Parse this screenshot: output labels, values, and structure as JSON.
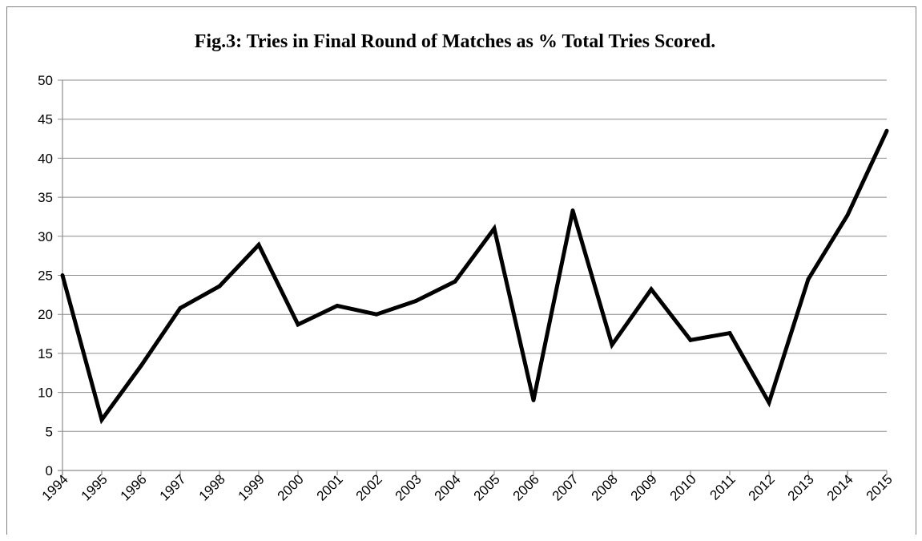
{
  "chart_data": {
    "type": "line",
    "title": "Fig.3: Tries in Final Round of Matches as % Total Tries Scored.",
    "xlabel": "",
    "ylabel": "",
    "x": [
      "1994",
      "1995",
      "1996",
      "1997",
      "1998",
      "1999",
      "2000",
      "2001",
      "2002",
      "2003",
      "2004",
      "2005",
      "2006",
      "2007",
      "2008",
      "2009",
      "2010",
      "2011",
      "2012",
      "2013",
      "2014",
      "2015"
    ],
    "series": [
      {
        "values": [
          25,
          6.5,
          13.4,
          20.8,
          23.6,
          28.9,
          18.7,
          21.1,
          20.0,
          21.7,
          24.2,
          31.0,
          9.0,
          33.3,
          16.1,
          23.2,
          16.7,
          17.6,
          8.7,
          24.5,
          32.7,
          43.5
        ],
        "color": "#000000"
      }
    ],
    "yticks": [
      "0",
      "5",
      "10",
      "15",
      "20",
      "25",
      "30",
      "35",
      "40",
      "45",
      "50"
    ],
    "ylim": [
      0,
      50
    ],
    "grid": true,
    "legend": "none",
    "colors": {
      "line": "#000000",
      "grid": "#8c8c8c",
      "frame": "#7f7f7f"
    }
  }
}
